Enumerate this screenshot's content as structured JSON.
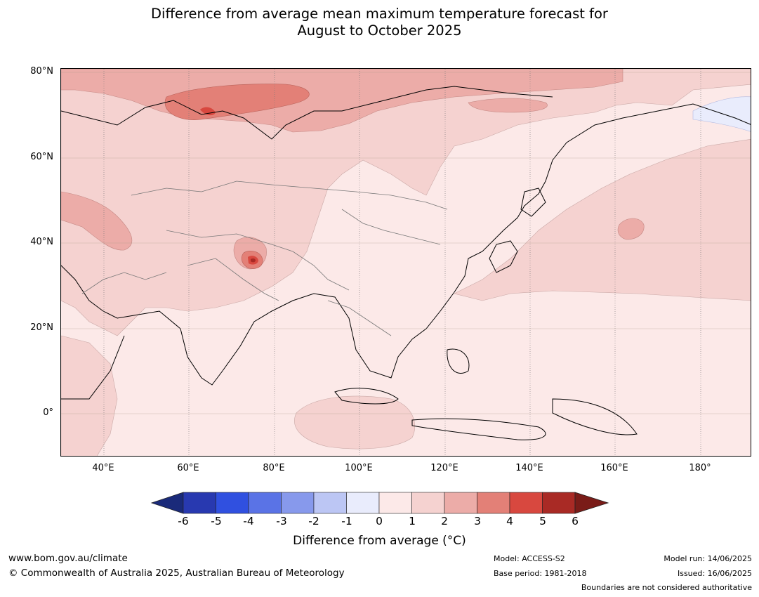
{
  "title_line1": "Difference from average mean maximum temperature forecast for",
  "title_line2": "August to October 2025",
  "map": {
    "lat_labels": [
      "80°N",
      "60°N",
      "40°N",
      "20°N",
      "0°"
    ],
    "lon_labels": [
      "40°E",
      "60°E",
      "80°E",
      "100°E",
      "120°E",
      "140°E",
      "160°E",
      "180°"
    ],
    "lon_range": [
      30,
      192
    ],
    "lat_range": [
      -10,
      81
    ]
  },
  "colorbar": {
    "ticks": [
      "-6",
      "-5",
      "-4",
      "-3",
      "-2",
      "-1",
      "0",
      "1",
      "2",
      "3",
      "4",
      "5",
      "6"
    ],
    "colors": [
      "#1a2a7a",
      "#2839b0",
      "#3050e0",
      "#5a73e6",
      "#8799ec",
      "#bcc6f4",
      "#e9ecfc",
      "#fce9e8",
      "#f5d2d0",
      "#ecaca8",
      "#e38077",
      "#d8483f",
      "#a92a25",
      "#7a1c18"
    ],
    "caption": "Difference from average (°C)"
  },
  "footer": {
    "url": "www.bom.gov.au/climate",
    "copyright": "© Commonwealth of Australia 2025, Australian Bureau of Meteorology",
    "model": "Model: ACCESS-S2",
    "base_period": "Base period: 1981-2018",
    "model_run": "Model run: 14/06/2025",
    "issued": "Issued: 16/06/2025",
    "disclaimer": "Boundaries are not considered authoritative"
  }
}
